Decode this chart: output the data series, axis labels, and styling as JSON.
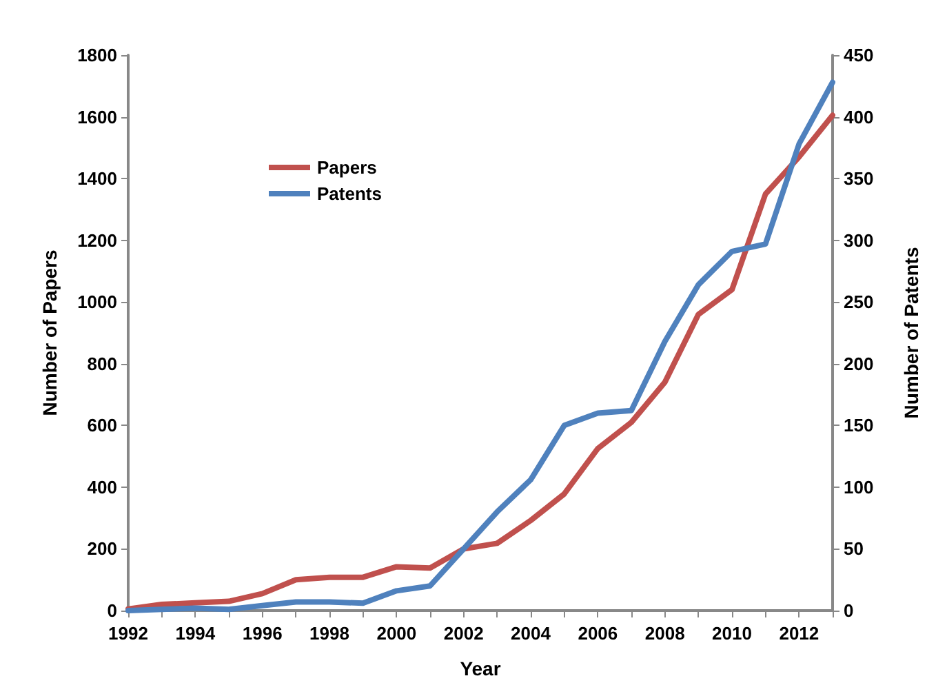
{
  "chart_data": {
    "type": "line",
    "xlabel": "Year",
    "ylabel": "Number of Papers",
    "y2label": "Number of Patents",
    "categories": [
      "1992",
      null,
      "1994",
      null,
      "1996",
      null,
      "1998",
      null,
      "2000",
      null,
      "2002",
      null,
      "2004",
      null,
      "2006",
      null,
      "2008",
      null,
      "2010",
      null,
      "2012",
      null
    ],
    "series": [
      {
        "name": "Papers",
        "color": "#c0504d",
        "values": [
          5,
          20,
          25,
          30,
          55,
          100,
          108,
          108,
          142,
          138,
          200,
          218,
          292,
          378,
          525,
          610,
          740,
          960,
          1040,
          1350,
          1470,
          1605
        ]
      },
      {
        "name": "Patents",
        "color": "#4f81bd",
        "axis": "y2",
        "values": [
          0,
          1,
          2,
          1,
          4,
          7,
          7,
          6,
          16,
          20,
          50,
          80,
          106,
          150,
          160,
          162,
          218,
          264,
          291,
          297,
          378,
          428
        ]
      }
    ],
    "ylim": [
      0,
      1800
    ],
    "yticks": [
      0,
      200,
      400,
      600,
      800,
      1000,
      1200,
      1400,
      1600,
      1800
    ],
    "y2lim": [
      0,
      450
    ],
    "y2ticks": [
      0,
      50,
      100,
      150,
      200,
      250,
      300,
      350,
      400,
      450
    ],
    "grid": false,
    "legend": "top left",
    "marker": "none",
    "line_style": "solid"
  }
}
